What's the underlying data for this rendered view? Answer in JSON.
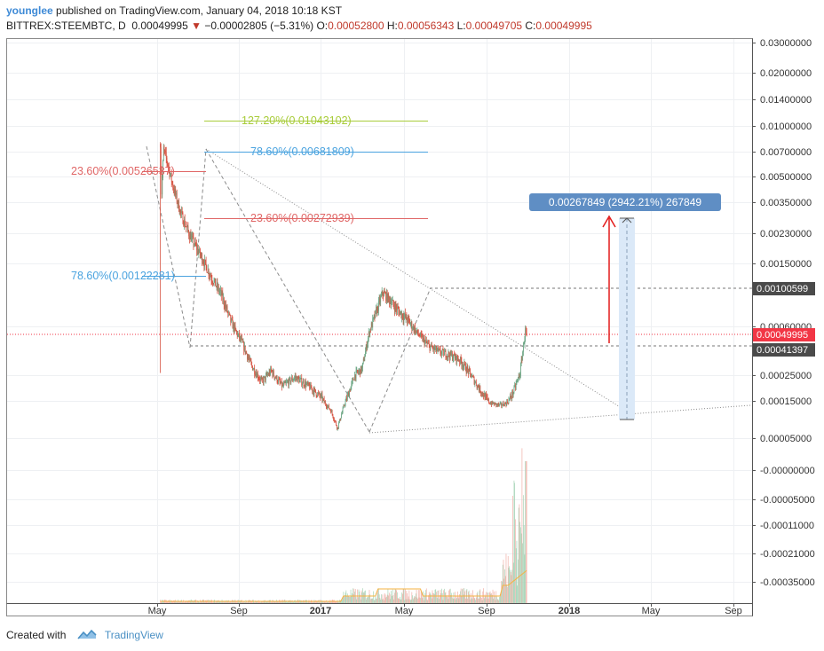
{
  "header": {
    "author": "younglee",
    "published_text": "published on TradingView.com, January 04, 2018 10:18 KST",
    "symbol": "BITTREX:STEEMBTC, D",
    "last": "0.00049995",
    "change": "−0.00002805 (−5.31%)",
    "open_label": "O:",
    "open": "0.00052800",
    "high_label": "H:",
    "high": "0.00056343",
    "low_label": "L:",
    "low": "0.00049705",
    "close_label": "C:",
    "close": "0.00049995"
  },
  "footer": {
    "created_with": "Created with",
    "brand": "TradingView"
  },
  "colors": {
    "candle_up": "#6ba583",
    "candle_down": "#d75442",
    "fib_red": "#e06666",
    "fib_blue": "#4aa3df",
    "fib_green": "#a8cc3a",
    "arrow": "#e31b1b",
    "range_fill": "#dbe9f8",
    "label_box": "#5f8ec4",
    "price_red": "#f23645",
    "axis": "#555555"
  },
  "chart_data": {
    "type": "candlestick",
    "symbol": "BITTREX:STEEMBTC",
    "interval": "D",
    "y_scale": "log",
    "y_ticks": [
      "0.03000000",
      "0.02000000",
      "0.01400000",
      "0.01000000",
      "0.00700000",
      "0.00500000",
      "0.00350000",
      "0.00230000",
      "0.00150000",
      "0.00060000",
      "0.00025000",
      "0.00015000",
      "0.00005000",
      "-0.00000000",
      "-0.00005000",
      "-0.00011000",
      "-0.00021000",
      "-0.00035000"
    ],
    "x_ticks": [
      "May",
      "Sep",
      "2017",
      "May",
      "Sep",
      "2018",
      "May",
      "Sep"
    ],
    "x_range": [
      "2016-04-18",
      "2018-10-15"
    ],
    "price_labels": [
      {
        "value": "0.00100599",
        "style": "dark"
      },
      {
        "value": "0.00049995",
        "style": "red"
      },
      {
        "value": "0.00041397",
        "style": "dark"
      }
    ],
    "fib_levels": [
      {
        "label": "127.20%(0.01043102)",
        "color": "green"
      },
      {
        "label": "78.60%(0.00681809)",
        "color": "blue"
      },
      {
        "label": "23.60%(0.00526537)",
        "color": "red"
      },
      {
        "label": "23.60%(0.00272939)",
        "color": "red"
      },
      {
        "label": "78.60%(0.00122281)",
        "color": "blue"
      }
    ],
    "range_measure": "0.00267849 (2942.21%) 267849",
    "price_path": [
      [
        "2016-07-01",
        0.008
      ],
      [
        "2016-07-03",
        0.004
      ],
      [
        "2016-07-06",
        0.0072
      ],
      [
        "2016-07-12",
        0.006
      ],
      [
        "2016-07-20",
        0.0044
      ],
      [
        "2016-08-01",
        0.003
      ],
      [
        "2016-08-15",
        0.0022
      ],
      [
        "2016-09-01",
        0.00165
      ],
      [
        "2016-09-15",
        0.00125
      ],
      [
        "2016-10-01",
        0.00095
      ],
      [
        "2016-10-15",
        0.00065
      ],
      [
        "2016-11-01",
        0.00045
      ],
      [
        "2016-11-15",
        0.0003
      ],
      [
        "2016-12-01",
        0.00022
      ],
      [
        "2016-12-15",
        0.00027
      ],
      [
        "2017-01-01",
        0.0002
      ],
      [
        "2017-01-20",
        0.00024
      ],
      [
        "2017-02-10",
        0.0002
      ],
      [
        "2017-03-01",
        0.00016
      ],
      [
        "2017-03-15",
        0.00011
      ],
      [
        "2017-03-25",
        6.2e-05
      ],
      [
        "2017-04-05",
        0.00014
      ],
      [
        "2017-04-20",
        0.00025
      ],
      [
        "2017-05-01",
        0.00028
      ],
      [
        "2017-05-12",
        0.00055
      ],
      [
        "2017-05-25",
        0.0008
      ],
      [
        "2017-06-01",
        0.00098
      ],
      [
        "2017-06-10",
        0.0009
      ],
      [
        "2017-06-25",
        0.00075
      ],
      [
        "2017-07-10",
        0.00065
      ],
      [
        "2017-07-25",
        0.00052
      ],
      [
        "2017-08-10",
        0.00042
      ],
      [
        "2017-08-25",
        0.00038
      ],
      [
        "2017-09-10",
        0.00036
      ],
      [
        "2017-09-25",
        0.00033
      ],
      [
        "2017-10-10",
        0.00026
      ],
      [
        "2017-10-25",
        0.00019
      ],
      [
        "2017-11-10",
        0.00014
      ],
      [
        "2017-11-25",
        0.00013
      ],
      [
        "2017-12-05",
        0.00014
      ],
      [
        "2017-12-15",
        0.00018
      ],
      [
        "2017-12-25",
        0.00026
      ],
      [
        "2018-01-02",
        0.00056
      ],
      [
        "2018-01-04",
        0.0005
      ]
    ]
  }
}
